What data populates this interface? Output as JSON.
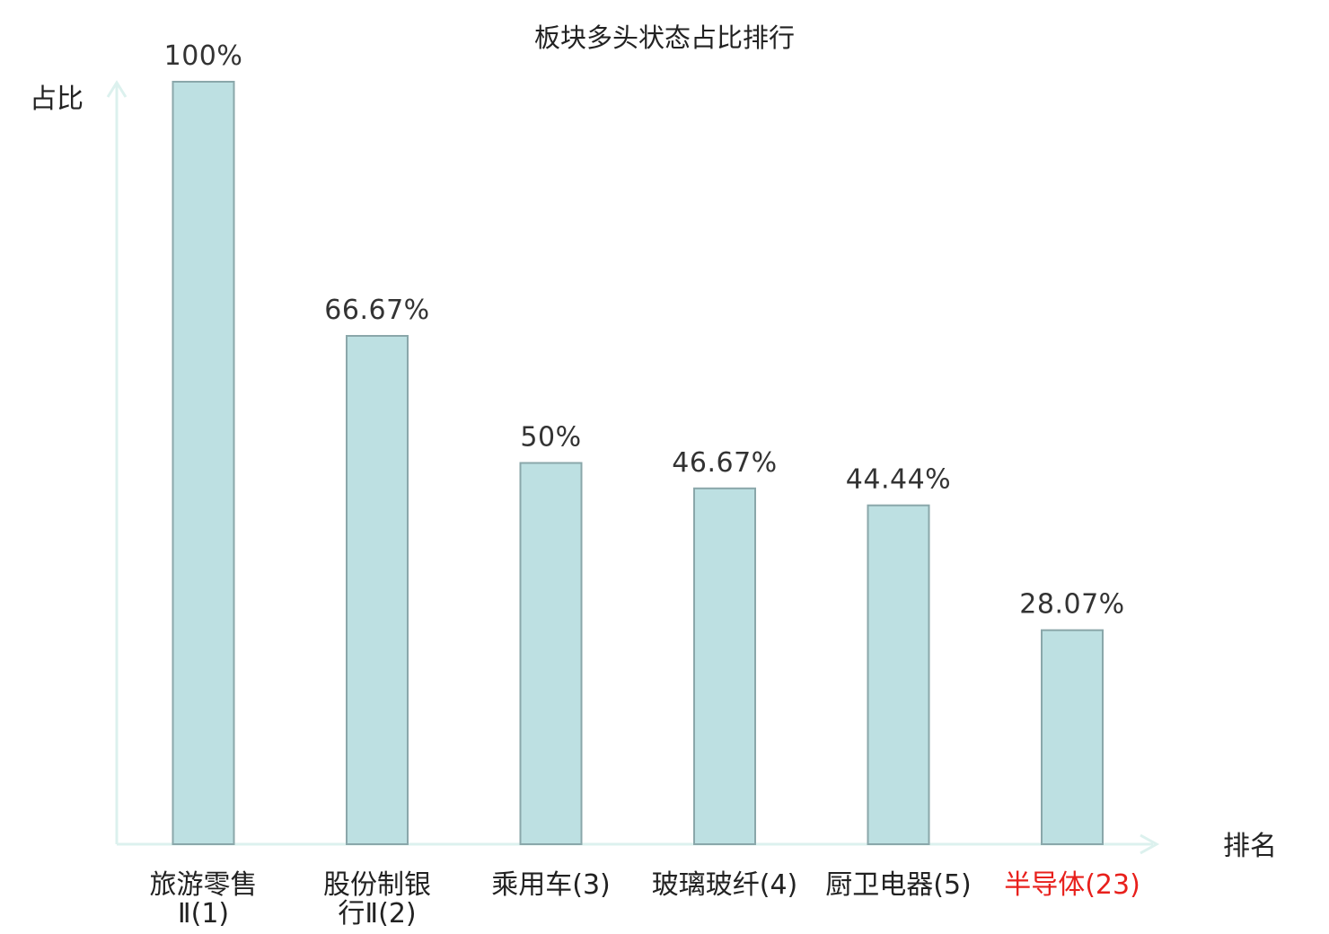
{
  "chart_data": {
    "type": "bar",
    "title": "板块多头状态占比排行",
    "ylabel": "占比",
    "xlabel": "排名",
    "ylim": [
      0,
      100
    ],
    "grid": false,
    "categories": [
      {
        "lines": [
          "旅游零售",
          "Ⅱ(1)"
        ],
        "highlight": false
      },
      {
        "lines": [
          "股份制银",
          "行Ⅱ(2)"
        ],
        "highlight": false
      },
      {
        "lines": [
          "乘用车(3)"
        ],
        "highlight": false
      },
      {
        "lines": [
          "玻璃玻纤(4)"
        ],
        "highlight": false
      },
      {
        "lines": [
          "厨卫电器(5)"
        ],
        "highlight": false
      },
      {
        "lines": [
          "半导体(23)"
        ],
        "highlight": true
      }
    ],
    "values": [
      100,
      66.67,
      50,
      46.67,
      44.44,
      28.07
    ],
    "value_labels": [
      "100%",
      "66.67%",
      "50%",
      "46.67%",
      "44.44%",
      "28.07%"
    ]
  },
  "colors": {
    "bar_fill": "#bde0e2",
    "bar_stroke": "#8aa7aa",
    "axis": "#dcf1ee",
    "highlight": "#e8201c",
    "text": "#222222"
  }
}
